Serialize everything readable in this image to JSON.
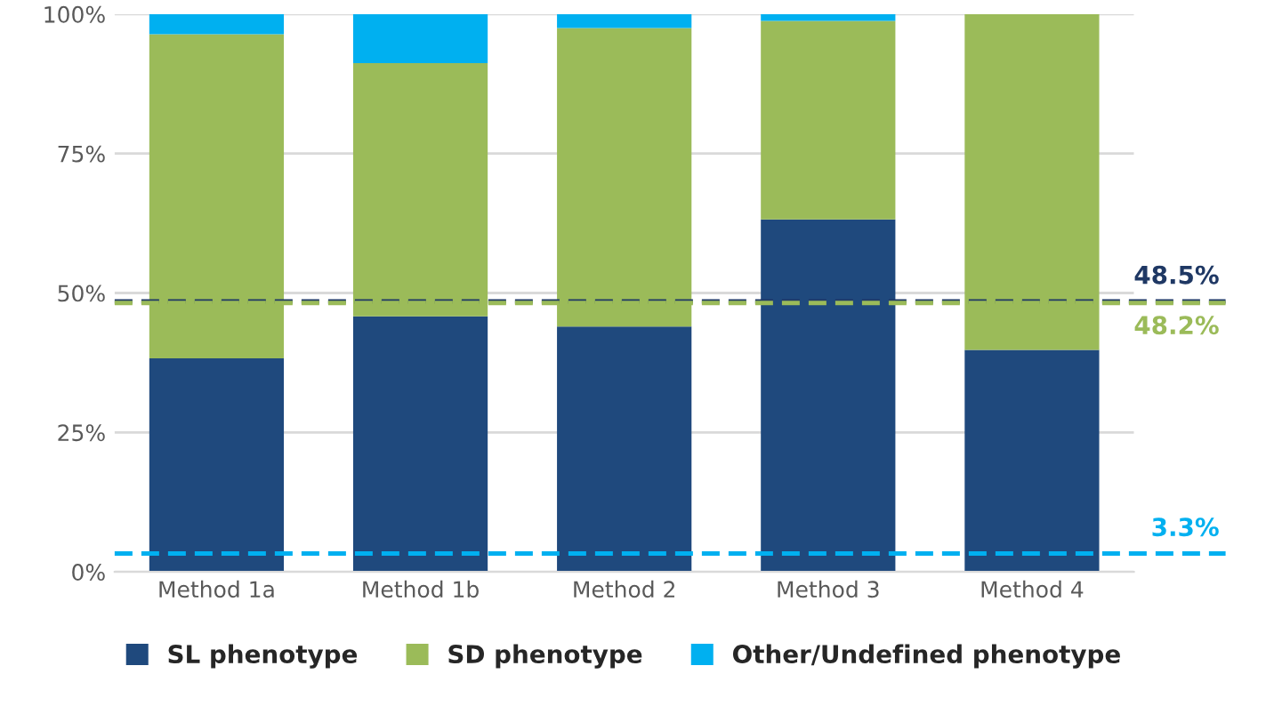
{
  "chart_data": {
    "type": "bar",
    "stacked": true,
    "categories": [
      "Method 1a",
      "Method 1b",
      "Method 2",
      "Method 3",
      "Method 4"
    ],
    "series": [
      {
        "name": "SL phenotype",
        "color": "#1f497d",
        "values": [
          38.3,
          45.8,
          44.0,
          63.2,
          39.8
        ]
      },
      {
        "name": "SD phenotype",
        "color": "#9bbb59",
        "values": [
          58.1,
          45.4,
          53.5,
          35.6,
          60.2
        ]
      },
      {
        "name": "Other/Undefined phenotype",
        "color": "#00b0f0",
        "values": [
          3.6,
          8.8,
          2.5,
          1.2,
          null
        ]
      }
    ],
    "ylim": [
      0,
      100
    ],
    "yticks": [
      {
        "value": 0,
        "label": "0%"
      },
      {
        "value": 25,
        "label": "25%"
      },
      {
        "value": 50,
        "label": "50%"
      },
      {
        "value": 75,
        "label": "75%"
      },
      {
        "value": 100,
        "label": "100%"
      }
    ],
    "grid": "y",
    "legend": "bottom",
    "ref_lines": [
      {
        "axis": "y",
        "value": 48.5,
        "label": "48.5%",
        "color": "#1f3864",
        "line_style": "dashed"
      },
      {
        "axis": "y",
        "value": 48.2,
        "label": "48.2%",
        "color": "#9bbb59",
        "line_style": "dashed"
      },
      {
        "axis": "y",
        "value": 3.3,
        "label": "3.3%",
        "color": "#00b0f0",
        "line_style": "dashed"
      }
    ]
  }
}
